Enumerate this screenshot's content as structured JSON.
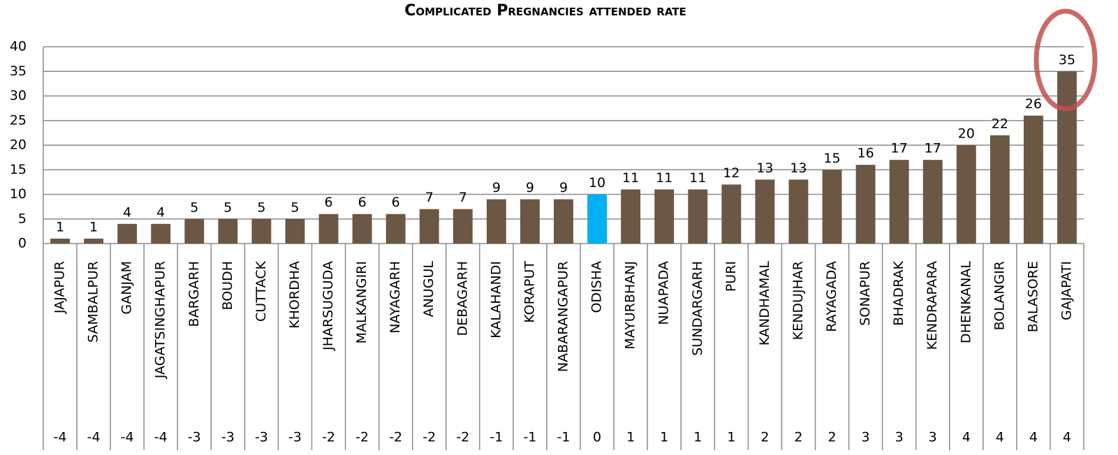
{
  "chart_data": {
    "type": "bar",
    "title": "Complicated Pregnancies attended rate",
    "categories": [
      "JAJAPUR",
      "SAMBALPUR",
      "GANJAM",
      "JAGATSINGHAPUR",
      "BARGARH",
      "BOUDH",
      "CUTTACK",
      "KHORDHA",
      "JHARSUGUDA",
      "MALKANGIRI",
      "NAYAGARH",
      "ANUGUL",
      "DEBAGARH",
      "KALAHANDI",
      "KORAPUT",
      "NABARANGAPUR",
      "ODISHA",
      "MAYURBHANJ",
      "NUAPADA",
      "SUNDARGARH",
      "PURI",
      "KANDHAMAL",
      "KENDUJHAR",
      "RAYAGADA",
      "SONAPUR",
      "BHADRAK",
      "KENDRAPARA",
      "DHENKANAL",
      "BOLANGIR",
      "BALASORE",
      "GAJAPATI"
    ],
    "secondary_categories": [
      -4,
      -4,
      -4,
      -4,
      -3,
      -3,
      -3,
      -3,
      -2,
      -2,
      -2,
      -2,
      -2,
      -1,
      -1,
      -1,
      0,
      1,
      1,
      1,
      1,
      2,
      2,
      2,
      3,
      3,
      3,
      4,
      4,
      4,
      4
    ],
    "values": [
      1,
      1,
      4,
      4,
      5,
      5,
      5,
      5,
      6,
      6,
      6,
      7,
      7,
      9,
      9,
      9,
      10,
      11,
      11,
      11,
      12,
      13,
      13,
      15,
      16,
      17,
      17,
      20,
      22,
      26,
      35
    ],
    "colors": [
      "#6b5744",
      "#6b5744",
      "#6b5744",
      "#6b5744",
      "#6b5744",
      "#6b5744",
      "#6b5744",
      "#6b5744",
      "#6b5744",
      "#6b5744",
      "#6b5744",
      "#6b5744",
      "#6b5744",
      "#6b5744",
      "#6b5744",
      "#6b5744",
      "#00b0f0",
      "#6b5744",
      "#6b5744",
      "#6b5744",
      "#6b5744",
      "#6b5744",
      "#6b5744",
      "#6b5744",
      "#6b5744",
      "#6b5744",
      "#6b5744",
      "#6b5744",
      "#6b5744",
      "#6b5744",
      "#6b5744"
    ],
    "ylim": [
      0,
      40
    ],
    "yticks": [
      0,
      5,
      10,
      15,
      20,
      25,
      30,
      35,
      40
    ],
    "grid": true
  }
}
